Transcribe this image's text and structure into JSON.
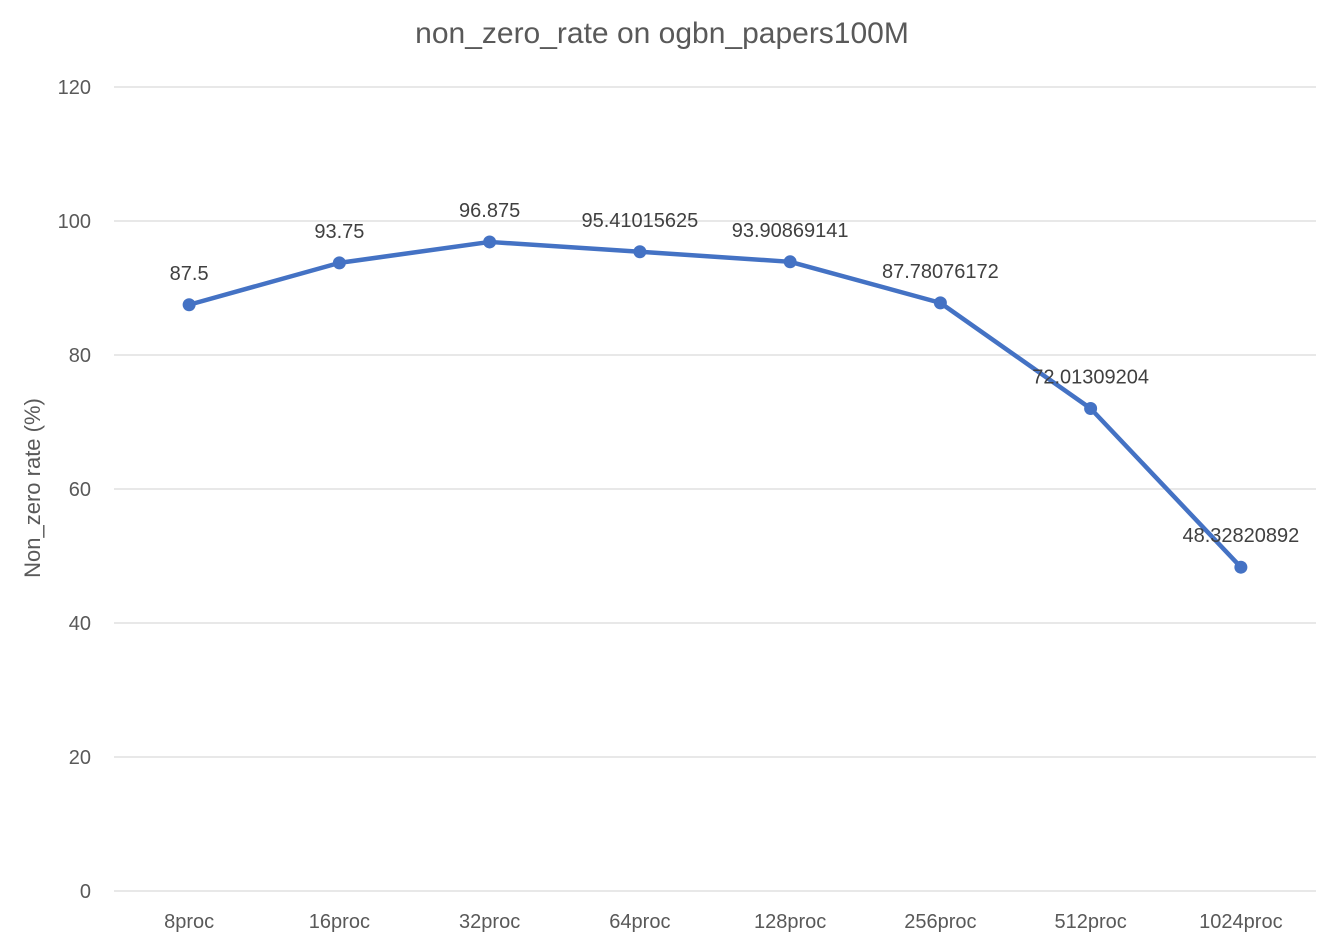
{
  "chart_data": {
    "type": "line",
    "title": "non_zero_rate on ogbn_papers100M",
    "xlabel": "",
    "ylabel": "Non_zero rate (%)",
    "ylim": [
      0,
      120
    ],
    "yticks": [
      0,
      20,
      40,
      60,
      80,
      100,
      120
    ],
    "grid": true,
    "legend": "none",
    "categories": [
      "8proc",
      "16proc",
      "32proc",
      "64proc",
      "128proc",
      "256proc",
      "512proc",
      "1024proc"
    ],
    "series": [
      {
        "color": "#4472c4",
        "values": [
          87.5,
          93.75,
          96.875,
          95.41015625,
          93.90869141,
          87.78076172,
          72.01309204,
          48.32820892
        ],
        "data_labels": [
          "87.5",
          "93.75",
          "96.875",
          "95.41015625",
          "93.90869141",
          "87.78076172",
          "72.01309204",
          "48.32820892"
        ]
      }
    ]
  }
}
